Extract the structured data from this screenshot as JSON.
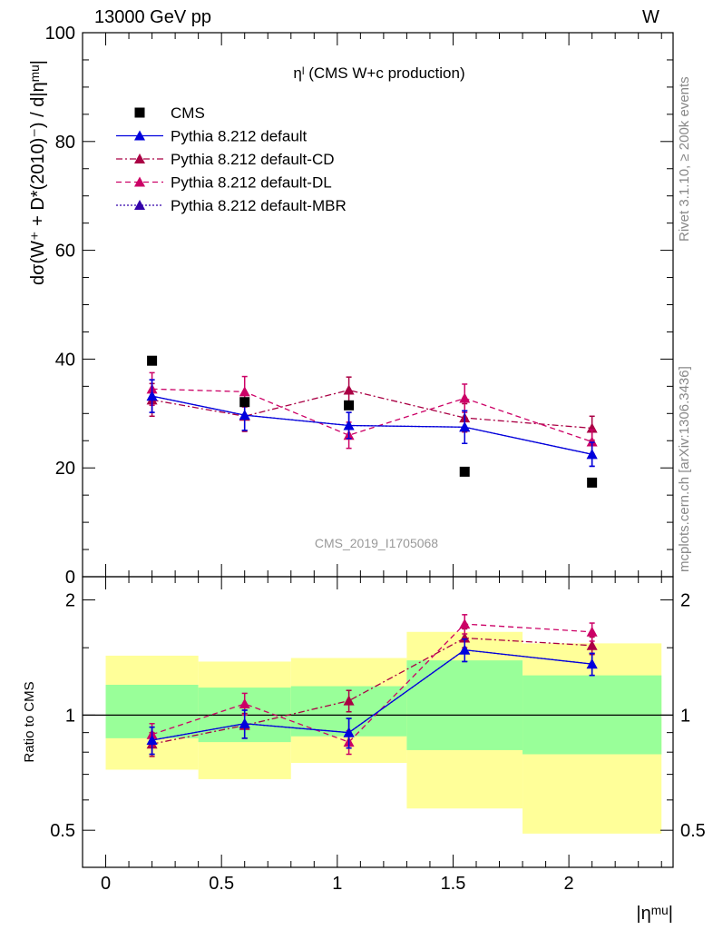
{
  "header": {
    "energy_label": "13000 GeV pp",
    "process_label": "W"
  },
  "side_text": {
    "rivet": "Rivet 3.1.10, ≥ 200k events",
    "source": "mcplots.cern.ch [arXiv:1306.3436]"
  },
  "colors": {
    "default": "#0000dd",
    "cd": "#aa0044",
    "dl": "#cc0066",
    "mbr": "#3300aa",
    "data": "#000000",
    "band_inner": "#99ff99",
    "band_outer": "#ffff99"
  },
  "chart_data": [
    {
      "type": "line",
      "title": "ηˡ (CMS W+c production)",
      "ylabel": "dσ(W⁺ + D*(2010)⁻) / d|ηᵐᵘ|",
      "xlabel": "|ηᵐᵘ|",
      "watermark": "CMS_2019_I1705068",
      "xlim": [
        -0.1,
        2.45
      ],
      "ylim": [
        0,
        100
      ],
      "yticks": [
        0,
        20,
        40,
        60,
        80,
        100
      ],
      "xticks": [
        0,
        0.5,
        1,
        1.5,
        2
      ],
      "x": [
        0.2,
        0.6,
        1.05,
        1.55,
        2.1
      ],
      "legend_position": "top-left",
      "series": [
        {
          "name": "CMS",
          "key": "data",
          "style": "square",
          "values": [
            39.7,
            32.1,
            31.5,
            19.3,
            17.3
          ]
        },
        {
          "name": "Pythia 8.212 default",
          "key": "default",
          "style": "solid",
          "values": [
            33.2,
            29.7,
            27.8,
            27.5,
            22.5
          ],
          "errors": [
            3.0,
            2.8,
            2.4,
            3.0,
            2.2
          ]
        },
        {
          "name": "Pythia 8.212 default-CD",
          "key": "cd",
          "style": "dashdot",
          "values": [
            32.5,
            29.5,
            34.3,
            29.2,
            27.3
          ],
          "errors": [
            3.0,
            2.8,
            2.4,
            2.6,
            2.2
          ]
        },
        {
          "name": "Pythia 8.212 default-DL",
          "key": "dl",
          "style": "dashed",
          "values": [
            34.5,
            34.0,
            26.0,
            32.8,
            24.8
          ],
          "errors": [
            3.0,
            2.8,
            2.4,
            2.6,
            2.2
          ]
        },
        {
          "name": "Pythia 8.212 default-MBR",
          "key": "mbr",
          "style": "dotted",
          "values": [
            33.2,
            29.7,
            27.8,
            27.5,
            22.5
          ],
          "errors": [
            3.0,
            2.8,
            2.4,
            3.0,
            2.2
          ]
        }
      ]
    },
    {
      "type": "line",
      "ylabel": "Ratio to CMS",
      "yscale": "log",
      "ylim": [
        0.4,
        2.3
      ],
      "yticks": [
        0.5,
        1,
        2
      ],
      "x": [
        0.2,
        0.6,
        1.05,
        1.55,
        2.1
      ],
      "reference_line": 1,
      "bands": [
        {
          "x0": 0.0,
          "x1": 0.4,
          "inner": [
            0.87,
            1.2
          ],
          "outer": [
            0.72,
            1.43
          ]
        },
        {
          "x0": 0.4,
          "x1": 0.8,
          "inner": [
            0.85,
            1.18
          ],
          "outer": [
            0.68,
            1.38
          ]
        },
        {
          "x0": 0.8,
          "x1": 1.3,
          "inner": [
            0.88,
            1.19
          ],
          "outer": [
            0.75,
            1.41
          ]
        },
        {
          "x0": 1.3,
          "x1": 1.8,
          "inner": [
            0.81,
            1.39
          ],
          "outer": [
            0.57,
            1.65
          ]
        },
        {
          "x0": 1.8,
          "x1": 2.4,
          "inner": [
            0.79,
            1.27
          ],
          "outer": [
            0.49,
            1.54
          ]
        }
      ],
      "series": [
        {
          "name": "Pythia 8.212 default",
          "key": "default",
          "style": "solid",
          "values": [
            0.86,
            0.95,
            0.9,
            1.48,
            1.36
          ],
          "errors": [
            0.07,
            0.08,
            0.08,
            0.1,
            0.09
          ]
        },
        {
          "name": "Pythia 8.212 default-CD",
          "key": "cd",
          "style": "dashdot",
          "values": [
            0.84,
            0.94,
            1.09,
            1.59,
            1.52
          ],
          "errors": [
            0.06,
            0.07,
            0.07,
            0.09,
            0.08
          ]
        },
        {
          "name": "Pythia 8.212 default-DL",
          "key": "dl",
          "style": "dashed",
          "values": [
            0.89,
            1.07,
            0.85,
            1.73,
            1.65
          ],
          "errors": [
            0.06,
            0.07,
            0.06,
            0.1,
            0.09
          ]
        },
        {
          "name": "Pythia 8.212 default-MBR",
          "key": "mbr",
          "style": "dotted",
          "values": [
            0.86,
            0.95,
            0.9,
            1.48,
            1.36
          ],
          "errors": [
            0.07,
            0.08,
            0.08,
            0.1,
            0.09
          ]
        }
      ]
    }
  ]
}
